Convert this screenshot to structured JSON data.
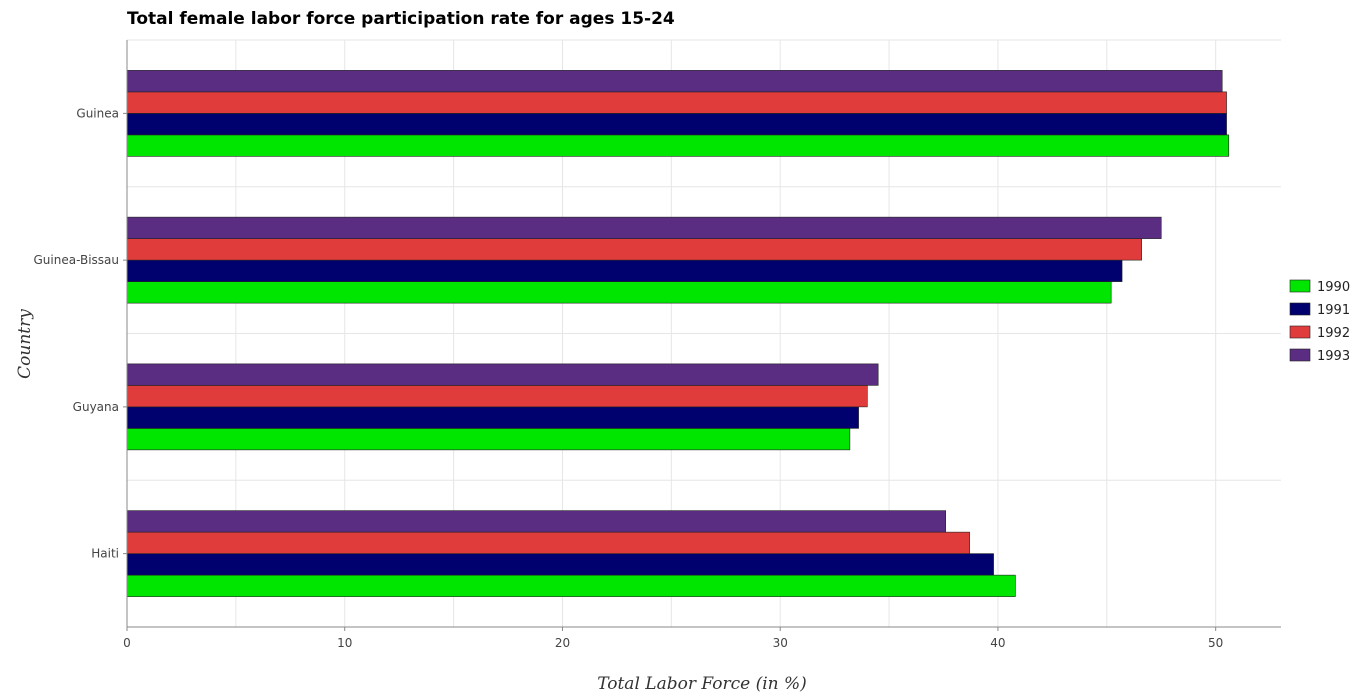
{
  "chart_data": {
    "type": "bar",
    "orientation": "horizontal",
    "title": "Total female labor force participation rate for ages 15-24",
    "xlabel": "Total Labor Force (in %)",
    "ylabel": "Country",
    "categories": [
      "Guinea",
      "Guinea-Bissau",
      "Guyana",
      "Haiti"
    ],
    "series": [
      {
        "name": "1990",
        "color": "#00e600",
        "values": [
          50.6,
          45.2,
          33.2,
          40.8
        ]
      },
      {
        "name": "1991",
        "color": "#00006e",
        "values": [
          50.5,
          45.7,
          33.6,
          39.8
        ]
      },
      {
        "name": "1992",
        "color": "#e03c3c",
        "values": [
          50.5,
          46.6,
          34.0,
          38.7
        ]
      },
      {
        "name": "1993",
        "color": "#5a2d82",
        "values": [
          50.3,
          47.5,
          34.5,
          37.6
        ]
      }
    ],
    "xlim": [
      0,
      53
    ],
    "xticks": [
      0,
      10,
      20,
      30,
      40,
      50
    ],
    "grid": true,
    "legend_position": "right"
  }
}
